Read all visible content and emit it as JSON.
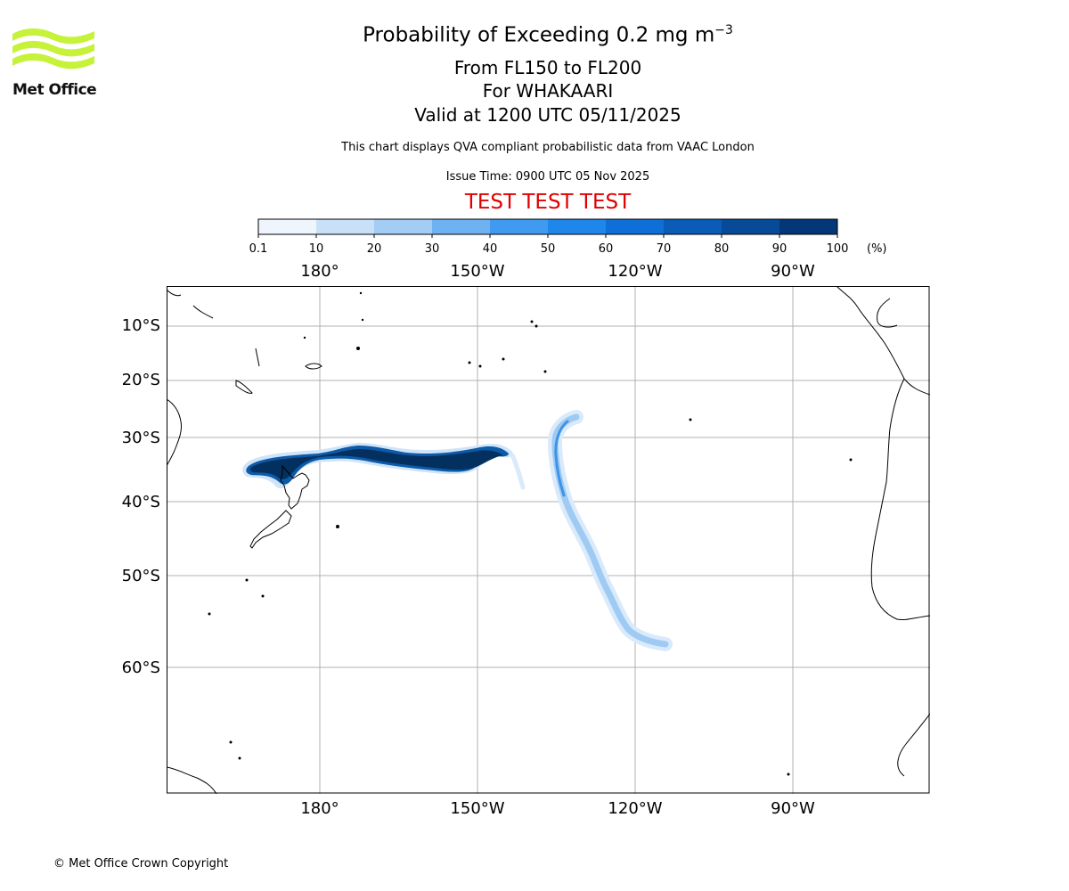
{
  "header": {
    "title_main": "Probability of Exceeding 0.2 mg m",
    "title_sup": "−3",
    "levels": "From FL150 to FL200",
    "volcano": "For WHAKAARI",
    "valid": "Valid at 1200 UTC 05/11/2025",
    "description": "This chart displays QVA compliant probabilistic data from VAAC London",
    "issue_time": "Issue Time: 0900 UTC 05 Nov 2025",
    "test_banner": "TEST TEST TEST"
  },
  "logo": {
    "text": "Met Office",
    "color": "#c6f23a"
  },
  "footer": {
    "copyright": "© Met Office Crown Copyright"
  },
  "colorbar": {
    "ticks": [
      "0.1",
      "10",
      "20",
      "30",
      "40",
      "50",
      "60",
      "70",
      "80",
      "90",
      "100"
    ],
    "unit": "(%)",
    "colors": [
      "#eef5fd",
      "#c9e1f8",
      "#a3cdf5",
      "#6eb2f2",
      "#3f9af0",
      "#1f86ec",
      "#0d6fd7",
      "#0a5cb7",
      "#074b98",
      "#043777"
    ]
  },
  "map": {
    "lon_labels": [
      "180°",
      "150°W",
      "120°W",
      "90°W"
    ],
    "lat_labels": [
      "10°S",
      "20°S",
      "30°S",
      "40°S",
      "50°S",
      "60°S"
    ]
  }
}
